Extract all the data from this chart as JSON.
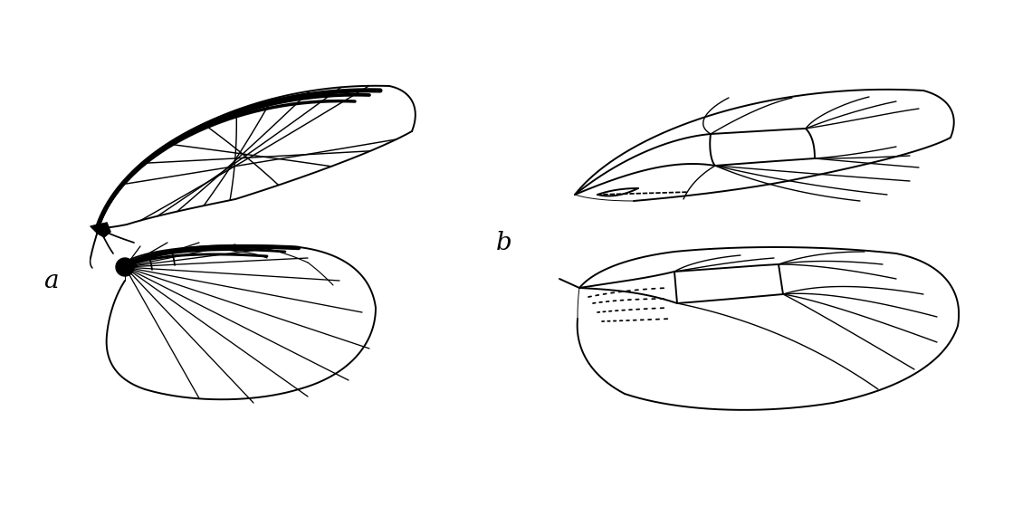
{
  "bg": "#ffffff",
  "lc": "#000000",
  "lw": 1.4,
  "lw_thick": 3.2,
  "lw_thin": 1.0,
  "label_a": "a",
  "label_b": "b",
  "label_fs": 20
}
